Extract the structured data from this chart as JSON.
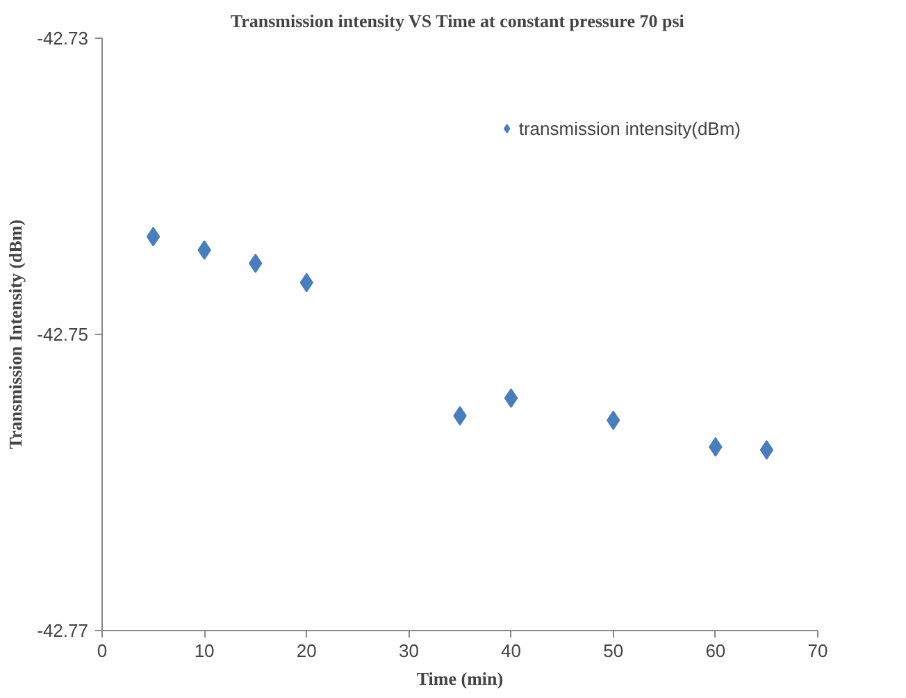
{
  "chart_data": {
    "type": "scatter",
    "title": "Transmission intensity  VS Time at constant pressure 70 psi",
    "xlabel": "Time (min)",
    "ylabel": "Transmission Intensity (dBm)",
    "x": [
      5,
      10,
      15,
      20,
      35,
      40,
      50,
      60,
      65
    ],
    "series": [
      {
        "name": "transmission intensity(dBm)",
        "color": "#4a7ebb",
        "values": [
          -42.7434,
          -42.7443,
          -42.7452,
          -42.7465,
          -42.7555,
          -42.7543,
          -42.7558,
          -42.7576,
          -42.7578
        ]
      }
    ],
    "xlim": [
      0,
      70
    ],
    "xticks": [
      0,
      10,
      20,
      30,
      40,
      50,
      60,
      70
    ],
    "ylim": [
      -42.77,
      -42.73
    ],
    "yticks": [
      -42.77,
      -42.75,
      -42.73
    ],
    "marker": "diamond",
    "legend": "top right",
    "grid": false
  }
}
